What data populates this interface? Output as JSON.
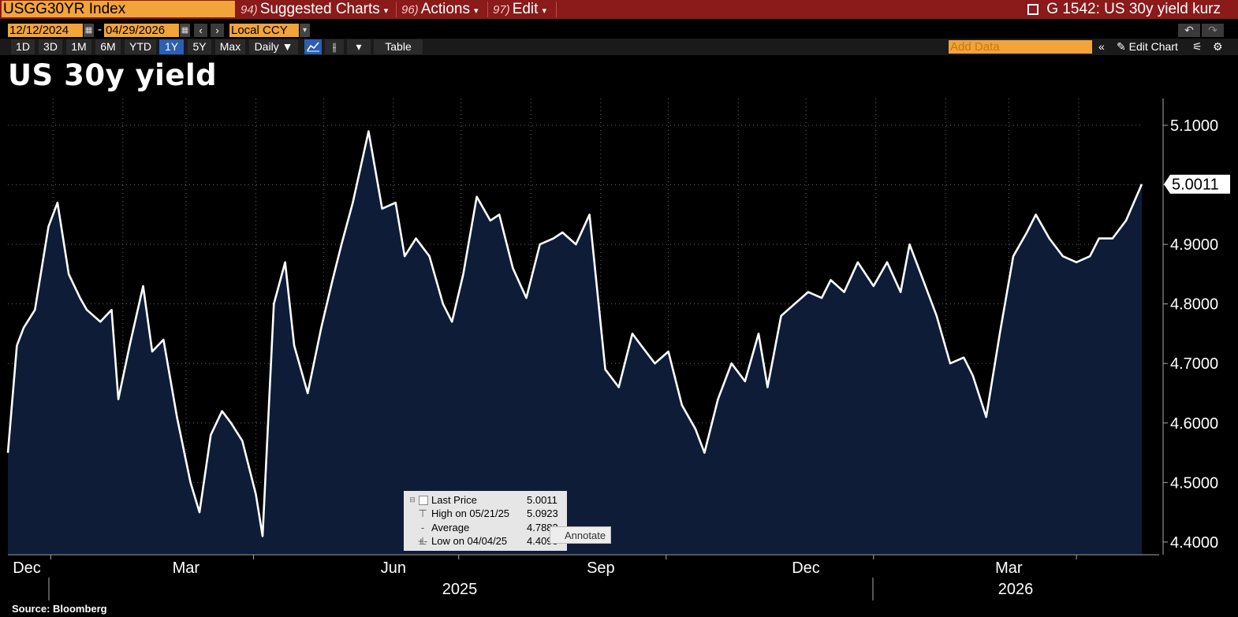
{
  "toolbar": {
    "ticker": "USGG30YR Index",
    "menu": [
      {
        "num": "94)",
        "label": "Suggested Charts"
      },
      {
        "num": "96)",
        "label": "Actions"
      },
      {
        "num": "97)",
        "label": "Edit"
      }
    ],
    "graph_title": "G 1542: US 30y yield kurz"
  },
  "date_range": {
    "start": "12/12/2024",
    "end": "04/29/2026",
    "currency": "Local CCY"
  },
  "range_buttons": [
    "1D",
    "3D",
    "1M",
    "6M",
    "YTD",
    "1Y",
    "5Y",
    "Max"
  ],
  "active_range": "1Y",
  "frequency": "Daily",
  "table_label": "Table",
  "add_data_placeholder": "Add Data",
  "edit_chart_label": "Edit Chart",
  "heading": "US 30y yield",
  "source": "Source:  Bloomberg",
  "legend": {
    "last_price_label": "Last Price",
    "last_price_value": "5.0011",
    "high_label": "High on 05/21/25",
    "high_value": "5.0923",
    "avg_label": "Average",
    "avg_value": "4.7883",
    "low_label": "Low on 04/04/25",
    "low_value": "4.4090"
  },
  "annotate_label": "Annotate",
  "colors": {
    "line": "#ffffff",
    "fill": "#0e1c38",
    "topbar": "#8b1a1a",
    "input": "#f2a33a",
    "active": "#2b5fb4"
  },
  "chart_data": {
    "type": "area",
    "title": "US 30y yield",
    "x_tick_labels": [
      "Dec",
      "Mar",
      "Jun",
      "Sep",
      "Dec",
      "Mar"
    ],
    "year_labels": [
      "2025",
      "2026"
    ],
    "y_ticks": [
      "5.1000",
      "5.0000",
      "4.9000",
      "4.8000",
      "4.7000",
      "4.6000",
      "4.5000",
      "4.4000"
    ],
    "ylim": [
      4.38,
      5.145
    ],
    "last_value_label": "5.0011",
    "grid": true,
    "series": [
      {
        "x": [
          "2024-12-12",
          "2024-12-16",
          "2024-12-19",
          "2024-12-24",
          "2024-12-30",
          "2025-01-03",
          "2025-01-08",
          "2025-01-13",
          "2025-01-16",
          "2025-01-22",
          "2025-01-27",
          "2025-01-30",
          "2025-02-04",
          "2025-02-10",
          "2025-02-14",
          "2025-02-19",
          "2025-02-25",
          "2025-03-03",
          "2025-03-07",
          "2025-03-12",
          "2025-03-17",
          "2025-03-21",
          "2025-03-26",
          "2025-04-01",
          "2025-04-04",
          "2025-04-09",
          "2025-04-14",
          "2025-04-18",
          "2025-04-24",
          "2025-04-30",
          "2025-05-05",
          "2025-05-09",
          "2025-05-14",
          "2025-05-21",
          "2025-05-27",
          "2025-06-02",
          "2025-06-06",
          "2025-06-11",
          "2025-06-17",
          "2025-06-23",
          "2025-06-27",
          "2025-07-02",
          "2025-07-08",
          "2025-07-14",
          "2025-07-18",
          "2025-07-24",
          "2025-07-30",
          "2025-08-05",
          "2025-08-11",
          "2025-08-15",
          "2025-08-21",
          "2025-08-27",
          "2025-09-03",
          "2025-09-09",
          "2025-09-15",
          "2025-09-19",
          "2025-09-25",
          "2025-10-01",
          "2025-10-07",
          "2025-10-13",
          "2025-10-17",
          "2025-10-23",
          "2025-10-29",
          "2025-11-04",
          "2025-11-10",
          "2025-11-14",
          "2025-11-20",
          "2025-11-26",
          "2025-12-02",
          "2025-12-08",
          "2025-12-12",
          "2025-12-18",
          "2025-12-24",
          "2025-12-31",
          "2026-01-06",
          "2026-01-12",
          "2026-01-16",
          "2026-01-22",
          "2026-01-28",
          "2026-02-03",
          "2026-02-09",
          "2026-02-13",
          "2026-02-19",
          "2026-02-25",
          "2026-03-03",
          "2026-03-09",
          "2026-03-13",
          "2026-03-19",
          "2026-03-25",
          "2026-03-31",
          "2026-04-06",
          "2026-04-10",
          "2026-04-16",
          "2026-04-22",
          "2026-04-29"
        ],
        "values": [
          4.55,
          4.73,
          4.76,
          4.79,
          4.93,
          4.97,
          4.85,
          4.81,
          4.79,
          4.77,
          4.79,
          4.64,
          4.73,
          4.83,
          4.72,
          4.74,
          4.61,
          4.5,
          4.45,
          4.58,
          4.62,
          4.6,
          4.57,
          4.48,
          4.41,
          4.8,
          4.87,
          4.73,
          4.65,
          4.76,
          4.84,
          4.9,
          4.97,
          5.09,
          4.96,
          4.97,
          4.88,
          4.91,
          4.88,
          4.8,
          4.77,
          4.85,
          4.98,
          4.94,
          4.95,
          4.86,
          4.81,
          4.9,
          4.91,
          4.92,
          4.9,
          4.95,
          4.69,
          4.66,
          4.75,
          4.73,
          4.7,
          4.72,
          4.63,
          4.59,
          4.55,
          4.64,
          4.7,
          4.67,
          4.75,
          4.66,
          4.78,
          4.8,
          4.82,
          4.81,
          4.84,
          4.82,
          4.87,
          4.83,
          4.87,
          4.82,
          4.9,
          4.84,
          4.78,
          4.7,
          4.71,
          4.68,
          4.61,
          4.75,
          4.88,
          4.92,
          4.95,
          4.91,
          4.88,
          4.87,
          4.88,
          4.91,
          4.91,
          4.94,
          5.0011
        ]
      }
    ]
  }
}
